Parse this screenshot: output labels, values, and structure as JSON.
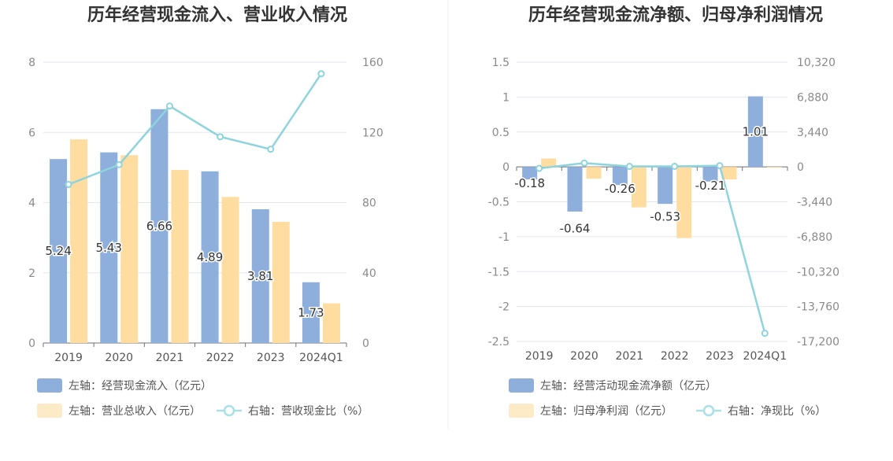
{
  "chart_data": [
    {
      "type": "bar",
      "title": "历年经营现金流入、营业收入情况",
      "categories": [
        "2019",
        "2020",
        "2021",
        "2022",
        "2023",
        "2024Q1"
      ],
      "left_axis": {
        "ylim": [
          0,
          8
        ],
        "ticks": [
          "0",
          "2",
          "4",
          "6",
          "8"
        ]
      },
      "right_axis": {
        "ylim": [
          0,
          160
        ],
        "ticks": [
          "0",
          "40",
          "80",
          "120",
          "160"
        ]
      },
      "series": [
        {
          "name": "左轴：经营现金流入（亿元）",
          "kind": "bar",
          "axis": "left",
          "color": "#8eaedb",
          "values": [
            5.24,
            5.43,
            6.66,
            4.89,
            3.81,
            1.73
          ],
          "labels": [
            "5.24",
            "5.43",
            "6.66",
            "4.89",
            "3.81",
            "1.73"
          ]
        },
        {
          "name": "左轴：营业总收入（亿元）",
          "kind": "bar",
          "axis": "left",
          "color": "#ffdc9f",
          "values": [
            5.8,
            5.35,
            4.93,
            4.16,
            3.45,
            1.13
          ]
        },
        {
          "name": "右轴：营收现金比（%）",
          "kind": "line",
          "axis": "right",
          "color": "#8ed4dc",
          "values": [
            90.3,
            101.6,
            135.0,
            117.5,
            110.4,
            153.4
          ]
        }
      ],
      "legend_rows": [
        [
          "左轴：经营现金流入（亿元）"
        ],
        [
          "左轴：营业总收入（亿元）",
          "右轴：营收现金比（%）"
        ]
      ]
    },
    {
      "type": "bar",
      "title": "历年经营现金流净额、归母净利润情况",
      "categories": [
        "2019",
        "2020",
        "2021",
        "2022",
        "2023",
        "2024Q1"
      ],
      "left_axis": {
        "ylim": [
          -2.5,
          1.5
        ],
        "ticks": [
          "-2.5",
          "-2",
          "-1.5",
          "-1",
          "-0.5",
          "0",
          "0.5",
          "1",
          "1.5"
        ]
      },
      "right_axis": {
        "ylim": [
          -17200,
          10320
        ],
        "ticks": [
          "-17,200",
          "-13,760",
          "-10,320",
          "-6,880",
          "-3,440",
          "0",
          "3,440",
          "6,880",
          "10,320"
        ]
      },
      "series": [
        {
          "name": "左轴：经营活动现金流净额（亿元）",
          "kind": "bar",
          "axis": "left",
          "color": "#8eaedb",
          "values": [
            -0.18,
            -0.64,
            -0.26,
            -0.53,
            -0.21,
            1.01
          ],
          "labels": [
            "-0.18",
            "-0.64",
            "-0.26",
            "-0.53",
            "-0.21",
            "1.01"
          ]
        },
        {
          "name": "左轴：归母净利润（亿元）",
          "kind": "bar",
          "axis": "left",
          "color": "#ffdc9f",
          "values": [
            0.12,
            -0.17,
            -0.58,
            -1.02,
            -0.18,
            -0.01
          ]
        },
        {
          "name": "右轴：净现比（%）",
          "kind": "line",
          "axis": "right",
          "color": "#8ed4dc",
          "values": [
            -150,
            376,
            45,
            52,
            117,
            -16400
          ]
        }
      ],
      "legend_rows": [
        [
          "左轴：经营活动现金流净额（亿元）"
        ],
        [
          "左轴：归母净利润（亿元）",
          "右轴：净现比（%）"
        ]
      ]
    }
  ]
}
